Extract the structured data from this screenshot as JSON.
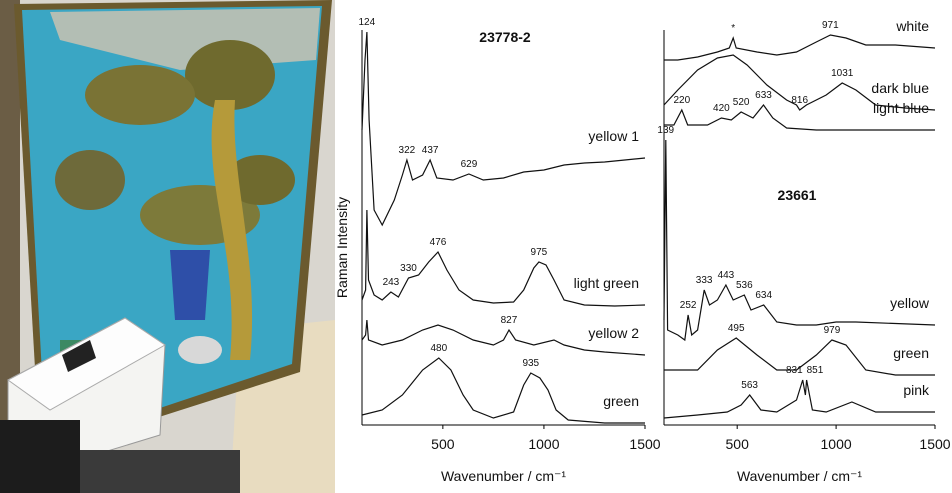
{
  "chart_data": [
    {
      "type": "line",
      "title": "23778-2",
      "xlabel": "Wavenumber / cm⁻¹",
      "ylabel": "Raman Intensity",
      "xlim": [
        100,
        1500
      ],
      "xticks": [
        500,
        1000,
        1500
      ],
      "ylim": [
        0,
        395
      ],
      "color": "#111111",
      "series": [
        {
          "name": "yellow 1",
          "peaks": [
            124,
            322,
            437,
            629
          ],
          "x": [
            100,
            115,
            124,
            135,
            160,
            200,
            260,
            300,
            322,
            350,
            400,
            437,
            470,
            550,
            629,
            700,
            800,
            900,
            1000,
            1100,
            1200,
            1300,
            1400,
            1500
          ],
          "values": [
            295,
            365,
            393,
            305,
            215,
            200,
            225,
            250,
            265,
            245,
            250,
            265,
            247,
            245,
            251,
            245,
            247,
            253,
            255,
            260,
            262,
            263,
            265,
            267
          ]
        },
        {
          "name": "light green",
          "peaks": [
            243,
            330,
            476,
            975
          ],
          "x": [
            100,
            118,
            124,
            132,
            160,
            200,
            243,
            280,
            330,
            380,
            430,
            476,
            520,
            580,
            650,
            750,
            850,
            900,
            950,
            975,
            1010,
            1050,
            1100,
            1200,
            1350,
            1500
          ],
          "values": [
            125,
            135,
            215,
            145,
            130,
            125,
            133,
            128,
            147,
            150,
            163,
            173,
            155,
            135,
            125,
            122,
            123,
            135,
            157,
            163,
            160,
            145,
            125,
            120,
            119,
            120
          ]
        },
        {
          "name": "yellow 2",
          "peaks": [
            827
          ],
          "x": [
            100,
            118,
            124,
            132,
            200,
            300,
            400,
            476,
            550,
            650,
            750,
            800,
            827,
            860,
            950,
            1050,
            1100,
            1200,
            1300,
            1500
          ],
          "values": [
            85,
            90,
            105,
            85,
            80,
            85,
            95,
            100,
            95,
            85,
            80,
            85,
            95,
            85,
            80,
            85,
            80,
            75,
            73,
            70
          ]
        },
        {
          "name": "green",
          "peaks": [
            480,
            935
          ],
          "x": [
            100,
            200,
            300,
            400,
            480,
            540,
            600,
            650,
            750,
            850,
            900,
            935,
            980,
            1020,
            1060,
            1120,
            1300,
            1500
          ],
          "values": [
            10,
            15,
            30,
            55,
            67,
            55,
            30,
            15,
            7,
            13,
            40,
            52,
            47,
            35,
            15,
            5,
            2,
            2
          ]
        }
      ]
    },
    {
      "type": "line",
      "title": "23661",
      "xlabel": "Wavenumber / cm⁻¹",
      "xlim": [
        130,
        1500
      ],
      "xticks": [
        500,
        1000,
        1500
      ],
      "ylim": [
        0,
        395
      ],
      "color": "#111111",
      "series": [
        {
          "name": "white",
          "peaks": [
            {
              "value": 480,
              "label": "*"
            },
            971
          ],
          "x": [
            130,
            200,
            300,
            400,
            460,
            480,
            495,
            600,
            700,
            800,
            900,
            971,
            1050,
            1150,
            1300,
            1500
          ],
          "values": [
            365,
            365,
            368,
            373,
            377,
            387,
            377,
            373,
            370,
            373,
            383,
            390,
            387,
            380,
            380,
            377
          ]
        },
        {
          "name": "dark blue",
          "peaks": [
            816,
            1031
          ],
          "x": [
            130,
            200,
            300,
            400,
            480,
            550,
            650,
            750,
            800,
            816,
            850,
            950,
            1031,
            1100,
            1200,
            1350,
            1500
          ],
          "values": [
            320,
            335,
            355,
            367,
            370,
            360,
            340,
            325,
            320,
            315,
            320,
            330,
            342,
            335,
            320,
            317,
            315
          ]
        },
        {
          "name": "light blue",
          "peaks": [
            220,
            420,
            520,
            633
          ],
          "x": [
            130,
            180,
            220,
            250,
            350,
            420,
            470,
            520,
            580,
            633,
            680,
            750,
            900,
            1100,
            1500
          ],
          "values": [
            300,
            300,
            315,
            300,
            300,
            307,
            305,
            313,
            307,
            320,
            307,
            297,
            295,
            295,
            295
          ]
        },
        {
          "name": "yellow",
          "peaks": [
            139,
            252,
            333,
            443,
            536,
            634
          ],
          "x": [
            130,
            139,
            148,
            200,
            235,
            252,
            270,
            300,
            333,
            360,
            400,
            443,
            480,
            536,
            570,
            634,
            700,
            800,
            900,
            1000,
            1100,
            1500
          ],
          "values": [
            105,
            285,
            95,
            90,
            85,
            110,
            90,
            95,
            135,
            120,
            125,
            140,
            125,
            130,
            115,
            120,
            103,
            100,
            100,
            103,
            103,
            100
          ]
        },
        {
          "name": "green",
          "peaks": [
            495,
            979
          ],
          "x": [
            130,
            300,
            400,
            495,
            600,
            700,
            800,
            900,
            979,
            1050,
            1150,
            1300,
            1500
          ],
          "values": [
            55,
            55,
            75,
            87,
            70,
            55,
            55,
            70,
            85,
            80,
            55,
            50,
            50
          ]
        },
        {
          "name": "pink",
          "peaks": [
            563,
            831,
            851
          ],
          "x": [
            130,
            300,
            450,
            520,
            563,
            620,
            700,
            800,
            831,
            845,
            851,
            880,
            950,
            1080,
            1200,
            1500
          ],
          "values": [
            7,
            10,
            13,
            20,
            30,
            15,
            13,
            25,
            45,
            30,
            45,
            15,
            13,
            23,
            13,
            13
          ]
        }
      ]
    }
  ]
}
